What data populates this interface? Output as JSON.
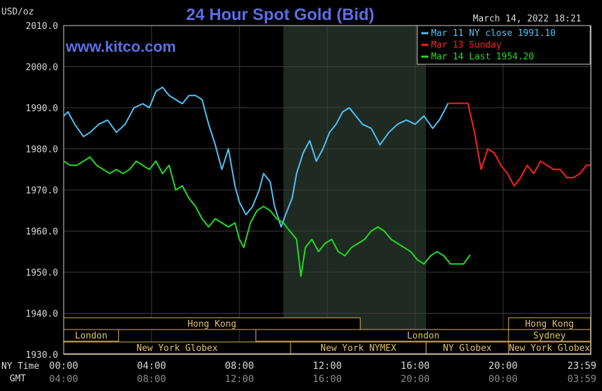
{
  "chart_data": {
    "type": "line",
    "title": "24 Hour Spot Gold (Bid)",
    "unit_label": "USD/oz",
    "timestamp": "March 14, 2022 18:21",
    "watermark": "www.kitco.com",
    "ylim": [
      1930,
      2010
    ],
    "y_ticks": [
      "2010.0",
      "2000.0",
      "1990.0",
      "1980.0",
      "1970.0",
      "1960.0",
      "1950.0",
      "1940.0",
      "1930.0"
    ],
    "y_tick_values": [
      2010,
      2000,
      1990,
      1980,
      1970,
      1960,
      1950,
      1940,
      1930
    ],
    "x_axis_hours": [
      0,
      24
    ],
    "x_row_labels": {
      "ny": "NY Time",
      "gmt": "GMT"
    },
    "x_ticks_ny": [
      "00:00",
      "04:00",
      "08:00",
      "12:00",
      "16:00",
      "20:00",
      "23:59"
    ],
    "x_ticks_gmt": [
      "04:00",
      "08:00",
      "12:00",
      "16:00",
      "20:00",
      "00:00",
      "03:59"
    ],
    "x_tick_hours": [
      0,
      4,
      8,
      12,
      16,
      20,
      23.98
    ],
    "shaded_range_hours": [
      10,
      16.5
    ],
    "market_sessions": [
      {
        "label": "Hong Kong",
        "start": 0,
        "end": 13.5,
        "row": 0
      },
      {
        "label": "Hong Kong",
        "start": 20.25,
        "end": 23.98,
        "row": 0
      },
      {
        "label": "London",
        "start": 0,
        "end": 2.5,
        "row": 1
      },
      {
        "label": "London",
        "start": 8.75,
        "end": 23.98,
        "row": 1
      },
      {
        "label": "Sydney",
        "start": 20.25,
        "end": 23.98,
        "row": 1
      },
      {
        "label": "New York Globex",
        "start": 0,
        "end": 10.33,
        "row": 2
      },
      {
        "label": "New York NYMEX",
        "start": 10.33,
        "end": 16.5,
        "row": 2
      },
      {
        "label": "NY Globex",
        "start": 16.5,
        "end": 20.25,
        "row": 2
      },
      {
        "label": "New York Globex",
        "start": 20.25,
        "end": 23.98,
        "row": 2
      }
    ],
    "series": [
      {
        "name": "Mar 11 NY close 1991.10",
        "color": "#4fc3f7",
        "x": [
          0,
          0.2,
          0.5,
          0.9,
          1.2,
          1.6,
          2.0,
          2.4,
          2.8,
          3.2,
          3.6,
          3.9,
          4.2,
          4.5,
          4.8,
          5.1,
          5.4,
          5.7,
          6.0,
          6.3,
          6.6,
          6.9,
          7.2,
          7.5,
          7.8,
          8.0,
          8.3,
          8.6,
          8.9,
          9.1,
          9.4,
          9.6,
          9.9,
          10.1,
          10.4,
          10.6,
          10.9,
          11.2,
          11.5,
          11.8,
          12.1,
          12.4,
          12.7,
          13.0,
          13.3,
          13.6,
          14.0,
          14.4,
          14.8,
          15.2,
          15.6,
          16.0,
          16.4,
          16.8,
          17.1,
          17.3,
          17.5
        ],
        "y": [
          1988,
          1989,
          1986,
          1983,
          1984,
          1986,
          1987,
          1984,
          1986,
          1990,
          1991,
          1990,
          1994,
          1995,
          1993,
          1992,
          1991,
          1993,
          1993,
          1992,
          1986,
          1981,
          1975,
          1980,
          1971,
          1967,
          1964,
          1966,
          1970,
          1974,
          1972,
          1966,
          1961,
          1964,
          1968,
          1974,
          1979,
          1982,
          1977,
          1980,
          1984,
          1986,
          1989,
          1990,
          1988,
          1986,
          1985,
          1981,
          1984,
          1986,
          1987,
          1986,
          1988,
          1985,
          1987,
          1989,
          1991.1
        ]
      },
      {
        "name": "Mar 13 Sunday",
        "color": "#ff2020",
        "x": [
          17.5,
          18.0,
          18.4,
          18.7,
          19.0,
          19.3,
          19.6,
          19.9,
          20.2,
          20.5,
          20.8,
          21.1,
          21.4,
          21.7,
          22.0,
          22.3,
          22.6,
          22.9,
          23.2,
          23.5,
          23.8,
          23.98
        ],
        "y": [
          1991.1,
          1991.1,
          1991.1,
          1984,
          1975,
          1980,
          1979,
          1976,
          1974,
          1971,
          1973,
          1976,
          1974,
          1977,
          1976,
          1975,
          1975,
          1973,
          1973,
          1974,
          1976,
          1976
        ]
      },
      {
        "name": "Mar 14 Last 1954.20",
        "color": "#22dd22",
        "x": [
          0,
          0.3,
          0.6,
          0.9,
          1.2,
          1.5,
          1.8,
          2.1,
          2.4,
          2.7,
          3.0,
          3.3,
          3.6,
          3.9,
          4.2,
          4.5,
          4.8,
          5.1,
          5.4,
          5.7,
          6.0,
          6.3,
          6.6,
          6.9,
          7.2,
          7.5,
          7.8,
          8.0,
          8.2,
          8.5,
          8.8,
          9.1,
          9.4,
          9.7,
          10.0,
          10.3,
          10.6,
          10.8,
          11.0,
          11.3,
          11.6,
          11.9,
          12.2,
          12.5,
          12.8,
          13.1,
          13.4,
          13.7,
          14.0,
          14.3,
          14.6,
          14.9,
          15.2,
          15.5,
          15.8,
          16.1,
          16.4,
          16.7,
          17.0,
          17.3,
          17.6,
          17.9,
          18.2,
          18.5
        ],
        "y": [
          1977,
          1976,
          1976,
          1977,
          1978,
          1976,
          1975,
          1974,
          1975,
          1974,
          1975,
          1977,
          1976,
          1975,
          1977,
          1974,
          1976,
          1970,
          1971,
          1968,
          1966,
          1963,
          1961,
          1963,
          1962,
          1961,
          1962,
          1958,
          1956,
          1962,
          1965,
          1966,
          1965,
          1963,
          1962,
          1960,
          1958,
          1949,
          1956,
          1958,
          1955,
          1957,
          1958,
          1955,
          1954,
          1956,
          1957,
          1958,
          1960,
          1961,
          1960,
          1958,
          1957,
          1956,
          1955,
          1953,
          1952,
          1954,
          1955,
          1954,
          1952,
          1952,
          1952,
          1954.2
        ]
      }
    ]
  }
}
